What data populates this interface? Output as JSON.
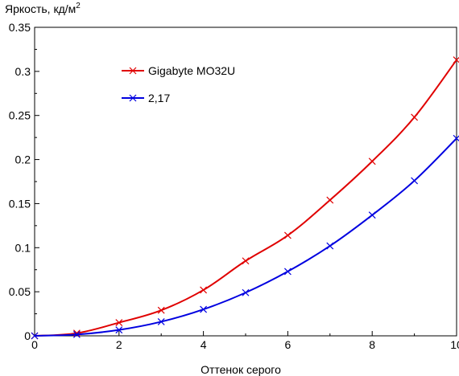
{
  "chart_data": {
    "type": "line",
    "ylabel": "Яркость, кд/м",
    "ylabel_superscript": "2",
    "xlabel": "Оттенок серого",
    "xlim": [
      0,
      10
    ],
    "ylim": [
      0,
      0.35
    ],
    "x_ticks": [
      "0",
      "2",
      "4",
      "6",
      "8",
      "10"
    ],
    "y_ticks": [
      "0",
      "0.05",
      "0.1",
      "0.15",
      "0.2",
      "0.25",
      "0.3",
      "0.35"
    ],
    "grid": false,
    "legend_position": "top-center",
    "x": [
      0,
      1,
      2,
      3,
      4,
      5,
      6,
      7,
      8,
      9,
      10
    ],
    "series": [
      {
        "name": "Gigabyte MO32U",
        "color": "#e00000",
        "marker": "x",
        "values": [
          0,
          0.003,
          0.015,
          0.029,
          0.052,
          0.085,
          0.114,
          0.154,
          0.198,
          0.248,
          0.313
        ]
      },
      {
        "name": "2,17",
        "color": "#0000e0",
        "marker": "x",
        "values": [
          0,
          0.0015,
          0.0067,
          0.016,
          0.03,
          0.049,
          0.073,
          0.102,
          0.137,
          0.176,
          0.224
        ]
      }
    ]
  }
}
